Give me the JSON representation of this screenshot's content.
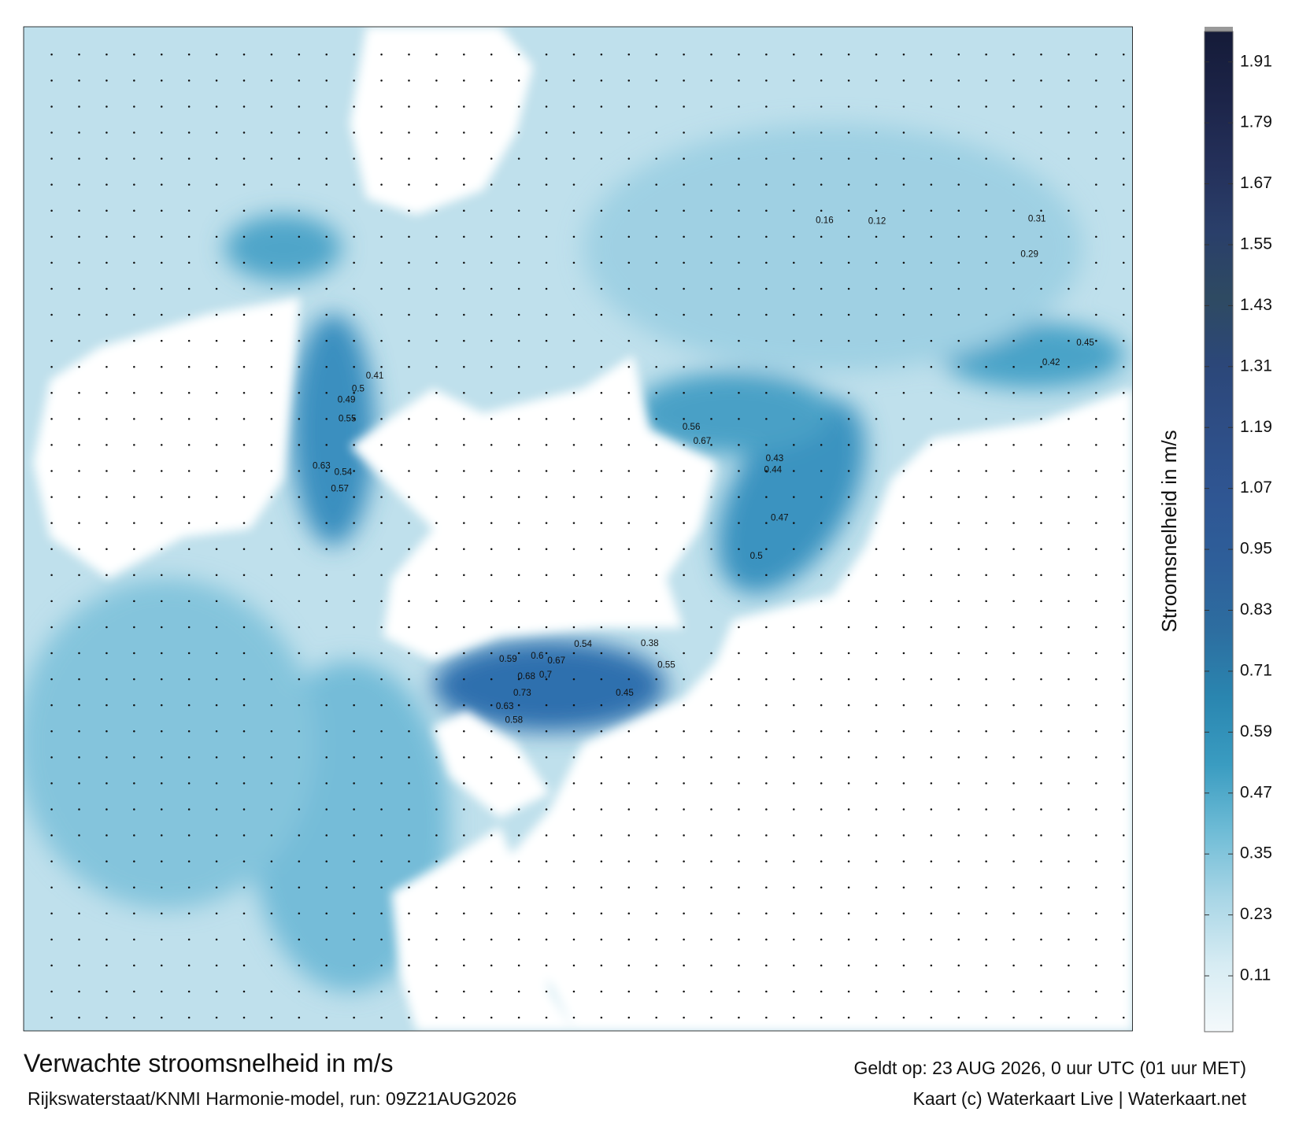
{
  "title": "Verwachte stroomsnelheid in m/s",
  "subtitle": "Rijkswaterstaat/KNMI Harmonie-model, run: 09Z21AUG2026",
  "valid_time": "Geldt op: 23 AUG 2026, 0 uur UTC (01 uur MET)",
  "credit": "Kaart (c) Waterkaart Live | Waterkaart.net",
  "colorbar": {
    "label": "Stroomsnelheid in m/s",
    "clim": [
      0,
      1.97
    ],
    "ticks": [
      {
        "value": 0.11,
        "label": "0.11"
      },
      {
        "value": 0.23,
        "label": "0.23"
      },
      {
        "value": 0.35,
        "label": "0.35"
      },
      {
        "value": 0.47,
        "label": "0.47"
      },
      {
        "value": 0.59,
        "label": "0.59"
      },
      {
        "value": 0.71,
        "label": "0.71"
      },
      {
        "value": 0.83,
        "label": "0.83"
      },
      {
        "value": 0.95,
        "label": "0.95"
      },
      {
        "value": 1.07,
        "label": "1.07"
      },
      {
        "value": 1.19,
        "label": "1.19"
      },
      {
        "value": 1.31,
        "label": "1.31"
      },
      {
        "value": 1.43,
        "label": "1.43"
      },
      {
        "value": 1.55,
        "label": "1.55"
      },
      {
        "value": 1.67,
        "label": "1.67"
      },
      {
        "value": 1.79,
        "label": "1.79"
      },
      {
        "value": 1.91,
        "label": "1.91"
      }
    ],
    "colors": [
      "#f4f9fb",
      "#d7ecf3",
      "#a9d6e6",
      "#6fbcd6",
      "#3a9cc1",
      "#2a86b0",
      "#2d6ea0",
      "#2e5f9a",
      "#2f5693",
      "#2e4e86",
      "#2c4779",
      "#2e4a62",
      "#2a3f6a",
      "#24305a",
      "#1c2448",
      "#151b38"
    ]
  },
  "map_labels": [
    "0.67",
    "0.7",
    "0.45",
    "0.38",
    "0.55",
    "0.6",
    "0.68",
    "0.59",
    "0.73",
    "0.63",
    "0.58",
    "0.54",
    "0.57",
    "0.63",
    "0.54",
    "0.55",
    "0.49",
    "0.5",
    "0.41",
    "0.56",
    "0.67",
    "0.44",
    "0.43",
    "0.5",
    "0.47",
    "0.42",
    "0.45",
    "0.29",
    "0.31",
    "0.16",
    "0.12"
  ]
}
